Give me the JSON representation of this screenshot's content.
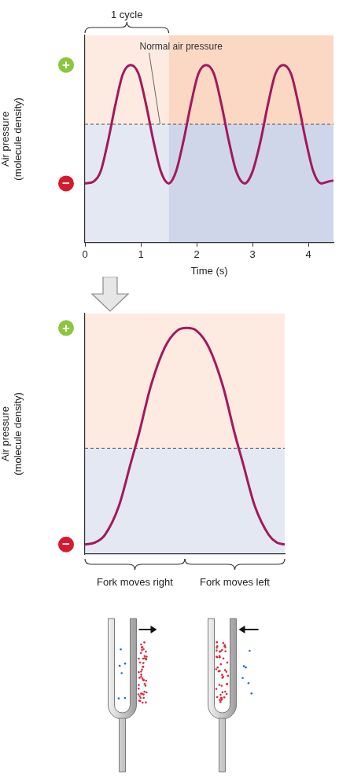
{
  "chart_data": [
    {
      "type": "line",
      "y_label": [
        "Air pressure",
        "(molecule density)"
      ],
      "x_label": "Time (s)",
      "x": [
        0,
        0.15,
        0.28,
        0.41,
        0.55,
        0.68,
        0.82,
        0.96,
        1.09,
        1.23,
        1.36,
        1.5,
        1.63,
        1.76,
        1.9,
        2.03,
        2.17,
        2.31,
        2.44,
        2.58,
        2.71,
        2.86,
        3.0,
        3.14,
        3.28,
        3.41,
        3.55,
        3.69,
        3.82,
        3.96,
        4.09,
        4.23,
        4.35,
        4.45
      ],
      "values": [
        -1,
        -0.97,
        -0.8,
        -0.3,
        0.35,
        0.85,
        1,
        0.85,
        0.35,
        -0.3,
        -0.8,
        -1,
        -0.8,
        -0.3,
        0.35,
        0.85,
        1,
        0.85,
        0.35,
        -0.3,
        -0.8,
        -1,
        -0.8,
        -0.3,
        0.35,
        0.85,
        1,
        0.85,
        0.35,
        -0.3,
        -0.8,
        -1,
        -0.97,
        -0.95
      ],
      "color": "#a3195b",
      "xlim": [
        0,
        4.45
      ],
      "xticks": [
        0,
        1,
        2,
        3,
        4
      ],
      "ylim": [
        -2,
        1.5
      ],
      "grid": false,
      "tick_labels": "x",
      "annotations": [
        {
          "text": "1 cycle",
          "x": [
            0,
            1.5
          ]
        },
        {
          "text": "Normal air pressure",
          "y": 0,
          "line_style": "dashed"
        },
        {
          "text": "+",
          "y": 1,
          "marker": "circle",
          "color": "#8cc63f"
        },
        {
          "text": "−",
          "y": -1,
          "marker": "circle",
          "color": "#d7192d"
        }
      ]
    },
    {
      "type": "line",
      "y_label": [
        "Air pressure",
        "(molecule density)"
      ],
      "x": [
        0,
        0.05,
        0.1,
        0.17,
        0.23,
        0.27,
        0.33,
        0.4,
        0.46,
        0.51,
        0.56,
        0.62,
        0.69,
        0.75,
        0.79,
        0.85,
        0.92,
        0.96,
        1
      ],
      "values": [
        -1,
        -0.98,
        -0.9,
        -0.6,
        -0.15,
        0.15,
        0.65,
        1.05,
        1.22,
        1.25,
        1.22,
        1.05,
        0.65,
        0.15,
        -0.15,
        -0.6,
        -0.9,
        -0.98,
        -1
      ],
      "color": "#a3195b",
      "xlim": [
        0,
        1
      ],
      "ylim": [
        -1.1,
        1.4
      ],
      "grid": false,
      "tick_labels": false,
      "annotations": [
        {
          "y": 0,
          "line_style": "dashed"
        },
        {
          "text": "+",
          "y": 1.25,
          "marker": "circle",
          "color": "#8cc63f"
        },
        {
          "text": "−",
          "y": -1,
          "marker": "circle",
          "color": "#d7192d"
        },
        {
          "text": "Fork moves right",
          "x": [
            0,
            0.5
          ]
        },
        {
          "text": "Fork moves left",
          "x": [
            0.5,
            1
          ]
        }
      ]
    }
  ]
}
